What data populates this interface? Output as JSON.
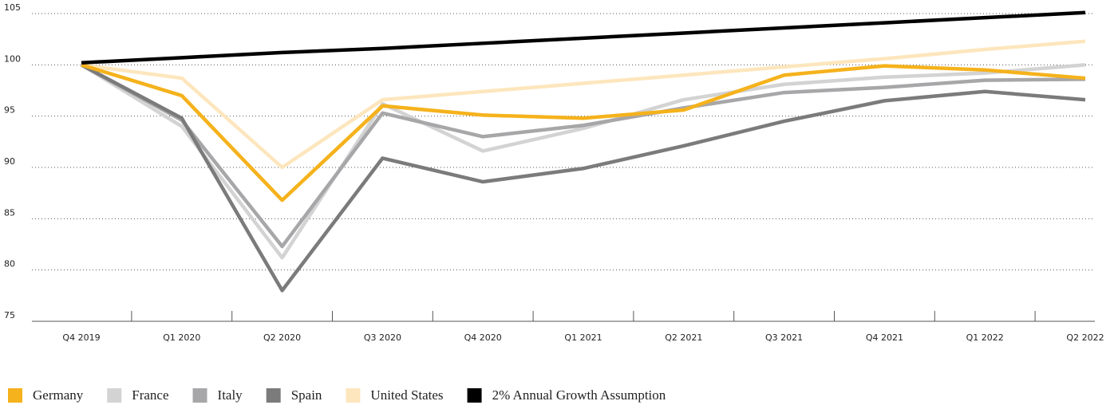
{
  "chart_data": {
    "type": "line",
    "categories": [
      "Q4 2019",
      "Q1 2020",
      "Q2 2020",
      "Q3 2020",
      "Q4 2020",
      "Q1 2021",
      "Q2 2021",
      "Q3 2021",
      "Q4 2021",
      "Q1 2022",
      "Q2 2022"
    ],
    "series": [
      {
        "name": "Germany",
        "color": "#f5b21c",
        "values": [
          100,
          97,
          86.8,
          96,
          95.1,
          94.8,
          95.6,
          99,
          99.9,
          99.5,
          98.7
        ]
      },
      {
        "name": "France",
        "color": "#d3d3d3",
        "values": [
          100,
          94,
          81.2,
          96.2,
          91.6,
          93.8,
          96.6,
          98.1,
          98.8,
          99.2,
          100
        ]
      },
      {
        "name": "Italy",
        "color": "#a7a6a8",
        "values": [
          100,
          94.6,
          82.3,
          95.3,
          93,
          94.1,
          95.8,
          97.3,
          97.8,
          98.5,
          98.6
        ]
      },
      {
        "name": "Spain",
        "color": "#7b7b7b",
        "values": [
          100,
          94.8,
          78,
          90.9,
          88.6,
          89.9,
          92.1,
          94.5,
          96.5,
          97.4,
          96.6
        ]
      },
      {
        "name": "United States",
        "color": "#fde6bd",
        "values": [
          100,
          98.7,
          90,
          96.6,
          97.4,
          98.2,
          99,
          99.8,
          100.6,
          101.5,
          102.3
        ]
      },
      {
        "name": "2% Annual Growth Assumption",
        "color": "#000000",
        "values": [
          100.2,
          100.7,
          101.2,
          101.6,
          102.1,
          102.6,
          103.1,
          103.6,
          104.1,
          104.6,
          105.1
        ]
      }
    ],
    "ylim": [
      75,
      105
    ],
    "yticks": [
      75,
      80,
      85,
      90,
      95,
      100,
      105
    ],
    "grid": true
  }
}
